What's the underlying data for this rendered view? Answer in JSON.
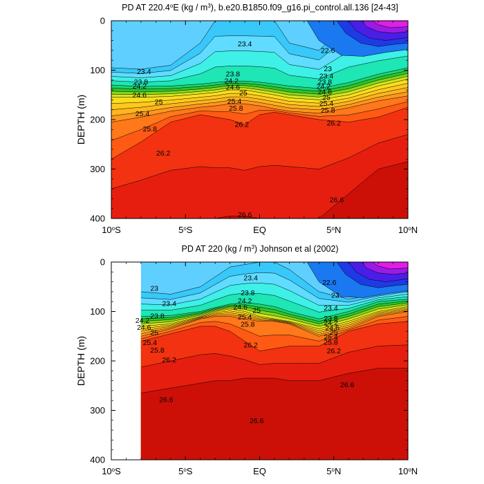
{
  "chart_data": [
    {
      "type": "contour",
      "title": "PD AT 220.4°E (kg / m³), b.e20.B1850.f09_g16.pi_control.all.136 [24-43]",
      "title_parts": {
        "pre": "PD AT 220.4",
        "deg": "o",
        "mid": "E (kg / m",
        "exp": "3",
        "post": "), b.e20.B1850.f09_g16.pi_control.all.136 [24-43]"
      },
      "ylabel": "DEPTH (m)",
      "xlim": [
        -10,
        10
      ],
      "ylim": [
        400,
        0
      ],
      "xticks": [
        {
          "value": -10,
          "label": "10",
          "deg": "o",
          "suffix": "S"
        },
        {
          "value": -5,
          "label": "5",
          "deg": "o",
          "suffix": "S"
        },
        {
          "value": 0,
          "label": "EQ",
          "deg": "",
          "suffix": ""
        },
        {
          "value": 5,
          "label": "5",
          "deg": "o",
          "suffix": "N"
        },
        {
          "value": 10,
          "label": "10",
          "deg": "o",
          "suffix": "N"
        }
      ],
      "yticks": [
        "0",
        "100",
        "200",
        "300",
        "400"
      ],
      "data_start_lat": -10,
      "contour_levels": [
        22.2,
        22.4,
        22.6,
        22.8,
        23.0,
        23.2,
        23.4,
        23.6,
        23.8,
        24.0,
        24.2,
        24.4,
        24.6,
        24.8,
        25.0,
        25.2,
        25.4,
        25.6,
        25.8,
        26.0,
        26.2,
        26.4,
        26.6
      ],
      "isopycnal_depths": {
        "lats": [
          -10,
          -8,
          -6,
          -4,
          -3,
          -2,
          -1,
          0,
          1,
          2,
          4,
          6,
          8,
          10
        ],
        "23.4": [
          95,
          98,
          90,
          45,
          0,
          0,
          0,
          0,
          0,
          45,
          60,
          0,
          0,
          0
        ],
        "24.2": [
          130,
          133,
          132,
          128,
          125,
          122,
          122,
          124,
          128,
          132,
          137,
          125,
          108,
          95
        ],
        "25.0": [
          155,
          155,
          153,
          148,
          145,
          140,
          140,
          145,
          150,
          156,
          160,
          150,
          132,
          118
        ],
        "25.8": [
          205,
          195,
          183,
          175,
          172,
          168,
          168,
          172,
          178,
          183,
          187,
          176,
          162,
          152
        ],
        "26.2": [
          280,
          245,
          205,
          190,
          195,
          200,
          210,
          190,
          185,
          190,
          200,
          205,
          195,
          175
        ],
        "26.6": [
          400,
          400,
          400,
          400,
          400,
          395,
          395,
          400,
          400,
          400,
          400,
          350,
          300,
          285
        ]
      },
      "labels": [
        {
          "text": "23.4",
          "lat": -7.8,
          "depth": 103
        },
        {
          "text": "23.8",
          "lat": -8.0,
          "depth": 124
        },
        {
          "text": "24.2",
          "lat": -8.1,
          "depth": 132
        },
        {
          "text": "24.6",
          "lat": -8.1,
          "depth": 150
        },
        {
          "text": "25",
          "lat": -6.8,
          "depth": 164
        },
        {
          "text": "25.4",
          "lat": -7.9,
          "depth": 188
        },
        {
          "text": "25.8",
          "lat": -7.4,
          "depth": 219
        },
        {
          "text": "26.2",
          "lat": -6.5,
          "depth": 268
        },
        {
          "text": "23.4",
          "lat": -1.0,
          "depth": 47
        },
        {
          "text": "23.8",
          "lat": -1.8,
          "depth": 108
        },
        {
          "text": "24.2",
          "lat": -1.9,
          "depth": 122
        },
        {
          "text": "24.6",
          "lat": -1.8,
          "depth": 134
        },
        {
          "text": "25",
          "lat": -1.1,
          "depth": 146
        },
        {
          "text": "25.4",
          "lat": -1.7,
          "depth": 163
        },
        {
          "text": "25.8",
          "lat": -1.6,
          "depth": 177
        },
        {
          "text": "26.2",
          "lat": -1.2,
          "depth": 210
        },
        {
          "text": "26.6",
          "lat": -1.0,
          "depth": 392
        },
        {
          "text": "22.6",
          "lat": 4.6,
          "depth": 60
        },
        {
          "text": "23",
          "lat": 4.6,
          "depth": 97
        },
        {
          "text": "23.4",
          "lat": 4.5,
          "depth": 112
        },
        {
          "text": "23.8",
          "lat": 4.4,
          "depth": 124
        },
        {
          "text": "24.2",
          "lat": 4.3,
          "depth": 133
        },
        {
          "text": "24.6",
          "lat": 4.4,
          "depth": 144
        },
        {
          "text": "25",
          "lat": 4.5,
          "depth": 155
        },
        {
          "text": "25.4",
          "lat": 4.5,
          "depth": 167
        },
        {
          "text": "25.8",
          "lat": 4.6,
          "depth": 181
        },
        {
          "text": "26.2",
          "lat": 5.0,
          "depth": 207
        },
        {
          "text": "26.6",
          "lat": 5.2,
          "depth": 362
        }
      ]
    },
    {
      "type": "contour",
      "title": "PD AT 220 (kg / m³) Johnson et al (2002)",
      "title_parts": {
        "pre": "PD AT 220",
        "deg": "",
        "mid": " (kg / m",
        "exp": "3",
        "post": ") Johnson et al (2002)"
      },
      "ylabel": "DEPTH (m)",
      "xlim": [
        -10,
        10
      ],
      "ylim": [
        400,
        0
      ],
      "xticks": [
        {
          "value": -10,
          "label": "10",
          "deg": "o",
          "suffix": "S"
        },
        {
          "value": -5,
          "label": "5",
          "deg": "o",
          "suffix": "S"
        },
        {
          "value": 0,
          "label": "EQ",
          "deg": "",
          "suffix": ""
        },
        {
          "value": 5,
          "label": "5",
          "deg": "o",
          "suffix": "N"
        },
        {
          "value": 10,
          "label": "10",
          "deg": "o",
          "suffix": "N"
        }
      ],
      "yticks": [
        "0",
        "100",
        "200",
        "300",
        "400"
      ],
      "data_start_lat": -8,
      "contour_levels": [
        22.2,
        22.4,
        22.6,
        22.8,
        23.0,
        23.2,
        23.4,
        23.6,
        23.8,
        24.0,
        24.2,
        24.4,
        24.6,
        24.8,
        25.0,
        25.2,
        25.4,
        25.6,
        25.8,
        26.0,
        26.2,
        26.4,
        26.6
      ],
      "isopycnal_depths": {
        "lats": [
          -8,
          -6,
          -4,
          -3,
          -2,
          -1,
          0,
          1,
          2,
          4,
          6,
          8,
          10
        ],
        "23.4": [
          60,
          65,
          50,
          30,
          10,
          5,
          0,
          0,
          15,
          60,
          75,
          65,
          55
        ],
        "24.2": [
          110,
          108,
          100,
          92,
          85,
          82,
          85,
          90,
          100,
          115,
          100,
          80,
          75
        ],
        "25.0": [
          130,
          125,
          110,
          100,
          95,
          100,
          110,
          115,
          120,
          135,
          120,
          100,
          90
        ],
        "25.8": [
          150,
          135,
          115,
          110,
          110,
          115,
          120,
          120,
          125,
          150,
          135,
          110,
          100
        ],
        "26.2": [
          160,
          145,
          130,
          130,
          140,
          160,
          180,
          175,
          170,
          170,
          140,
          125,
          120
        ],
        "26.6": [
          265,
          255,
          245,
          240,
          240,
          235,
          235,
          235,
          240,
          240,
          225,
          215,
          215
        ]
      },
      "labels": [
        {
          "text": "23",
          "lat": -7.1,
          "depth": 53
        },
        {
          "text": "23.4",
          "lat": -6.1,
          "depth": 84
        },
        {
          "text": "23.8",
          "lat": -6.9,
          "depth": 109
        },
        {
          "text": "24.2",
          "lat": -7.9,
          "depth": 118
        },
        {
          "text": "24.6",
          "lat": -7.8,
          "depth": 132
        },
        {
          "text": "25",
          "lat": -7.1,
          "depth": 143
        },
        {
          "text": "25.4",
          "lat": -7.4,
          "depth": 163
        },
        {
          "text": "25.8",
          "lat": -6.9,
          "depth": 178
        },
        {
          "text": "26.2",
          "lat": -6.1,
          "depth": 198
        },
        {
          "text": "26.6",
          "lat": -6.3,
          "depth": 278
        },
        {
          "text": "23.4",
          "lat": -0.6,
          "depth": 32
        },
        {
          "text": "23.8",
          "lat": -0.8,
          "depth": 62
        },
        {
          "text": "24.2",
          "lat": -1.0,
          "depth": 78
        },
        {
          "text": "24.6",
          "lat": -1.3,
          "depth": 91
        },
        {
          "text": "25",
          "lat": -0.2,
          "depth": 98
        },
        {
          "text": "25.4",
          "lat": -1.0,
          "depth": 111
        },
        {
          "text": "25.8",
          "lat": -0.8,
          "depth": 126
        },
        {
          "text": "26.2",
          "lat": -0.6,
          "depth": 168
        },
        {
          "text": "26.6",
          "lat": -0.2,
          "depth": 321
        },
        {
          "text": "22.6",
          "lat": 4.7,
          "depth": 41
        },
        {
          "text": "23",
          "lat": 5.1,
          "depth": 67
        },
        {
          "text": "23.4",
          "lat": 4.8,
          "depth": 93
        },
        {
          "text": "23.8",
          "lat": 4.8,
          "depth": 114
        },
        {
          "text": "24.2",
          "lat": 4.8,
          "depth": 123
        },
        {
          "text": "24.6",
          "lat": 4.9,
          "depth": 133
        },
        {
          "text": "25",
          "lat": 5.0,
          "depth": 142
        },
        {
          "text": "25.4",
          "lat": 4.8,
          "depth": 152
        },
        {
          "text": "25.8",
          "lat": 4.8,
          "depth": 162
        },
        {
          "text": "26.2",
          "lat": 5.0,
          "depth": 180
        },
        {
          "text": "26.6",
          "lat": 5.9,
          "depth": 248
        }
      ]
    }
  ]
}
